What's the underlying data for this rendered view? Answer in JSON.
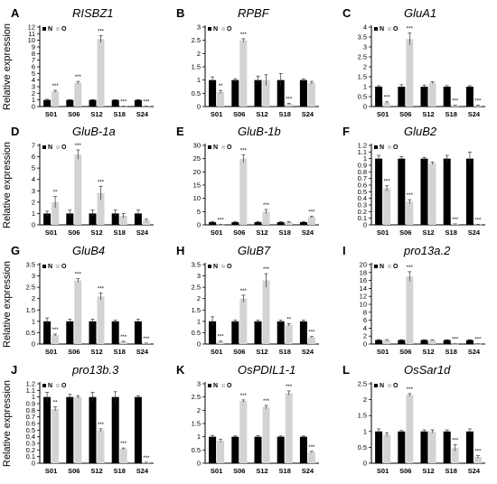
{
  "figure": {
    "ylabel": "Relative expression",
    "samples": [
      "S01",
      "S06",
      "S12",
      "S18",
      "S24"
    ],
    "legend": {
      "n": "N",
      "o": "O"
    },
    "colors": {
      "n": "#000000",
      "o": "#d3d3d3",
      "axis": "#000000"
    }
  },
  "chart_data": [
    {
      "type": "bar",
      "panel": "A",
      "title": "RISBZ1",
      "categories": [
        "S01",
        "S06",
        "S12",
        "S18",
        "S24"
      ],
      "ylim": [
        0,
        12
      ],
      "yticks": [
        "0",
        "1",
        "2",
        "3",
        "4",
        "5",
        "6",
        "7",
        "8",
        "9",
        "10",
        "11",
        "12"
      ],
      "series": [
        {
          "name": "N",
          "values": [
            1.0,
            1.0,
            1.0,
            1.0,
            1.0
          ],
          "errors": [
            0.1,
            0.06,
            0.06,
            0.05,
            0.05
          ],
          "sig": [
            "",
            "",
            "",
            "",
            ""
          ]
        },
        {
          "name": "O",
          "values": [
            2.3,
            3.6,
            10.2,
            0.05,
            0.05
          ],
          "errors": [
            0.15,
            0.2,
            0.5,
            0.02,
            0.02
          ],
          "sig": [
            "***",
            "***",
            "***",
            "***",
            "***"
          ]
        }
      ]
    },
    {
      "type": "bar",
      "panel": "B",
      "title": "RPBF",
      "categories": [
        "S01",
        "S06",
        "S12",
        "S18",
        "S24"
      ],
      "ylim": [
        0,
        3
      ],
      "yticks": [
        "0",
        "0.5",
        "1",
        "1.5",
        "2",
        "2.5",
        "3"
      ],
      "series": [
        {
          "name": "N",
          "values": [
            1.0,
            1.0,
            1.0,
            1.0,
            1.0
          ],
          "errors": [
            0.12,
            0.05,
            0.15,
            0.25,
            0.05
          ],
          "sig": [
            "",
            "",
            "",
            "",
            ""
          ]
        },
        {
          "name": "O",
          "values": [
            0.55,
            2.5,
            1.0,
            0.1,
            0.9
          ],
          "errors": [
            0.06,
            0.06,
            0.2,
            0.02,
            0.05
          ],
          "sig": [
            "**",
            "***",
            "",
            "***",
            ""
          ]
        }
      ]
    },
    {
      "type": "bar",
      "panel": "C",
      "title": "GluA1",
      "categories": [
        "S01",
        "S06",
        "S12",
        "S18",
        "S24"
      ],
      "ylim": [
        0,
        4
      ],
      "yticks": [
        "0",
        "0.5",
        "1",
        "1.5",
        "2",
        "2.5",
        "3",
        "3.5",
        "4"
      ],
      "series": [
        {
          "name": "N",
          "values": [
            1.0,
            1.0,
            1.0,
            1.0,
            1.0
          ],
          "errors": [
            0.05,
            0.1,
            0.08,
            0.05,
            0.05
          ],
          "sig": [
            "",
            "",
            "",
            "",
            ""
          ]
        },
        {
          "name": "O",
          "values": [
            0.2,
            3.4,
            1.2,
            0.05,
            0.05
          ],
          "errors": [
            0.04,
            0.3,
            0.05,
            0.02,
            0.02
          ],
          "sig": [
            "***",
            "***",
            "",
            "***",
            "***"
          ]
        }
      ]
    },
    {
      "type": "bar",
      "panel": "D",
      "title": "GluB-1a",
      "categories": [
        "S01",
        "S06",
        "S12",
        "S18",
        "S24"
      ],
      "ylim": [
        0,
        7
      ],
      "yticks": [
        "0",
        "1",
        "2",
        "3",
        "4",
        "5",
        "6",
        "7"
      ],
      "series": [
        {
          "name": "N",
          "values": [
            1.0,
            1.0,
            1.0,
            1.0,
            1.0
          ],
          "errors": [
            0.2,
            0.3,
            0.3,
            0.3,
            0.3
          ],
          "sig": [
            "",
            "",
            "",
            "",
            ""
          ]
        },
        {
          "name": "O",
          "values": [
            2.0,
            6.2,
            2.8,
            0.8,
            0.4
          ],
          "errors": [
            0.5,
            0.4,
            0.6,
            0.2,
            0.1
          ],
          "sig": [
            "**",
            "***",
            "***",
            "",
            ""
          ]
        }
      ]
    },
    {
      "type": "bar",
      "panel": "E",
      "title": "GluB-1b",
      "categories": [
        "S01",
        "S06",
        "S12",
        "S18",
        "S24"
      ],
      "ylim": [
        0,
        30
      ],
      "yticks": [
        "0",
        "5",
        "10",
        "15",
        "20",
        "25",
        "30"
      ],
      "series": [
        {
          "name": "N",
          "values": [
            1.0,
            1.0,
            1.0,
            1.0,
            1.0
          ],
          "errors": [
            0.2,
            0.2,
            0.2,
            0.2,
            0.2
          ],
          "sig": [
            "",
            "",
            "",
            "",
            ""
          ]
        },
        {
          "name": "O",
          "values": [
            0.1,
            25.0,
            5.0,
            1.0,
            3.0
          ],
          "errors": [
            0.05,
            1.5,
            0.8,
            0.2,
            0.3
          ],
          "sig": [
            "***",
            "***",
            "***",
            "",
            "***"
          ]
        }
      ]
    },
    {
      "type": "bar",
      "panel": "F",
      "title": "GluB2",
      "categories": [
        "S01",
        "S06",
        "S12",
        "S18",
        "S24"
      ],
      "ylim": [
        0,
        1.2
      ],
      "yticks": [
        "0",
        "0.1",
        "0.2",
        "0.3",
        "0.4",
        "0.5",
        "0.6",
        "0.7",
        "0.8",
        "0.9",
        "1",
        "1.1",
        "1.2"
      ],
      "series": [
        {
          "name": "N",
          "values": [
            1.0,
            1.0,
            1.0,
            1.0,
            1.0
          ],
          "errors": [
            0.05,
            0.03,
            0.02,
            0.05,
            0.1
          ],
          "sig": [
            "",
            "",
            "",
            "",
            ""
          ]
        },
        {
          "name": "O",
          "values": [
            0.55,
            0.35,
            0.93,
            0.01,
            0.005
          ],
          "errors": [
            0.04,
            0.03,
            0.02,
            0.005,
            0.003
          ],
          "sig": [
            "***",
            "***",
            "",
            "***",
            "***"
          ]
        }
      ]
    },
    {
      "type": "bar",
      "panel": "G",
      "title": "GluB4",
      "categories": [
        "S01",
        "S06",
        "S12",
        "S18",
        "S24"
      ],
      "ylim": [
        0,
        3.5
      ],
      "yticks": [
        "0",
        "0.5",
        "1",
        "1.5",
        "2",
        "2.5",
        "3",
        "3.5"
      ],
      "series": [
        {
          "name": "N",
          "values": [
            1.0,
            1.0,
            1.0,
            1.0,
            1.0
          ],
          "errors": [
            0.15,
            0.1,
            0.1,
            0.05,
            0.1
          ],
          "sig": [
            "",
            "",
            "",
            "",
            ""
          ]
        },
        {
          "name": "O",
          "values": [
            0.4,
            2.8,
            2.1,
            0.1,
            0.03
          ],
          "errors": [
            0.04,
            0.08,
            0.15,
            0.02,
            0.01
          ],
          "sig": [
            "***",
            "***",
            "***",
            "***",
            "***"
          ]
        }
      ]
    },
    {
      "type": "bar",
      "panel": "H",
      "title": "GluB7",
      "categories": [
        "S01",
        "S06",
        "S12",
        "S18",
        "S24"
      ],
      "ylim": [
        0,
        3.5
      ],
      "yticks": [
        "0",
        "0.5",
        "1",
        "1.5",
        "2",
        "2.5",
        "3",
        "3.5"
      ],
      "series": [
        {
          "name": "N",
          "values": [
            1.0,
            1.0,
            1.0,
            1.0,
            1.0
          ],
          "errors": [
            0.2,
            0.05,
            0.05,
            0.05,
            0.05
          ],
          "sig": [
            "",
            "",
            "",
            "",
            ""
          ]
        },
        {
          "name": "O",
          "values": [
            0.1,
            2.0,
            2.8,
            0.85,
            0.3
          ],
          "errors": [
            0.03,
            0.15,
            0.3,
            0.05,
            0.03
          ],
          "sig": [
            "***",
            "***",
            "***",
            "**",
            "***"
          ]
        }
      ]
    },
    {
      "type": "bar",
      "panel": "I",
      "title": "pro13a.2",
      "categories": [
        "S01",
        "S06",
        "S12",
        "S18",
        "S24"
      ],
      "ylim": [
        0,
        20
      ],
      "yticks": [
        "0",
        "2",
        "4",
        "6",
        "8",
        "10",
        "12",
        "14",
        "16",
        "18",
        "20"
      ],
      "series": [
        {
          "name": "N",
          "values": [
            1.0,
            1.0,
            1.0,
            1.0,
            1.0
          ],
          "errors": [
            0.1,
            0.1,
            0.1,
            0.1,
            0.1
          ],
          "sig": [
            "",
            "",
            "",
            "",
            ""
          ]
        },
        {
          "name": "O",
          "values": [
            1.0,
            17.0,
            1.0,
            0.05,
            0.05
          ],
          "errors": [
            0.1,
            1.2,
            0.1,
            0.02,
            0.02
          ],
          "sig": [
            "",
            "***",
            "",
            "***",
            "***"
          ]
        }
      ]
    },
    {
      "type": "bar",
      "panel": "J",
      "title": "pro13b.3",
      "categories": [
        "S01",
        "S06",
        "S12",
        "S18",
        "S24"
      ],
      "ylim": [
        0,
        1.2
      ],
      "yticks": [
        "0",
        "0.1",
        "0.2",
        "0.3",
        "0.4",
        "0.5",
        "0.6",
        "0.7",
        "0.8",
        "0.9",
        "1",
        "1.1",
        "1.2"
      ],
      "series": [
        {
          "name": "N",
          "values": [
            1.0,
            1.0,
            1.0,
            1.0,
            1.0
          ],
          "errors": [
            0.07,
            0.04,
            0.07,
            0.08,
            0.02
          ],
          "sig": [
            "",
            "",
            "",
            "",
            ""
          ]
        },
        {
          "name": "O",
          "values": [
            0.82,
            1.0,
            0.5,
            0.22,
            0.01
          ],
          "errors": [
            0.03,
            0.02,
            0.02,
            0.01,
            0.005
          ],
          "sig": [
            "**",
            "",
            "***",
            "***",
            "***"
          ]
        }
      ]
    },
    {
      "type": "bar",
      "panel": "K",
      "title": "OsPDIL1-1",
      "categories": [
        "S01",
        "S06",
        "S12",
        "S18",
        "S24"
      ],
      "ylim": [
        0,
        3
      ],
      "yticks": [
        "0",
        "0.5",
        "1",
        "1.5",
        "2",
        "2.5",
        "3"
      ],
      "series": [
        {
          "name": "N",
          "values": [
            1.0,
            1.0,
            1.0,
            1.0,
            1.0
          ],
          "errors": [
            0.05,
            0.03,
            0.04,
            0.03,
            0.03
          ],
          "sig": [
            "",
            "",
            "",
            "",
            ""
          ]
        },
        {
          "name": "O",
          "values": [
            0.85,
            2.35,
            2.12,
            2.65,
            0.42
          ],
          "errors": [
            0.05,
            0.04,
            0.06,
            0.08,
            0.03
          ],
          "sig": [
            "",
            "***",
            "***",
            "***",
            "***"
          ]
        }
      ]
    },
    {
      "type": "bar",
      "panel": "L",
      "title": "OsSar1d",
      "categories": [
        "S01",
        "S06",
        "S12",
        "S18",
        "S24"
      ],
      "ylim": [
        0,
        2.5
      ],
      "yticks": [
        "0",
        "0.5",
        "1",
        "1.5",
        "2",
        "2.5"
      ],
      "series": [
        {
          "name": "N",
          "values": [
            1.0,
            1.0,
            1.0,
            1.0,
            1.0
          ],
          "errors": [
            0.08,
            0.03,
            0.05,
            0.05,
            0.08
          ],
          "sig": [
            "",
            "",
            "",
            "",
            ""
          ]
        },
        {
          "name": "O",
          "values": [
            0.9,
            2.15,
            1.0,
            0.48,
            0.2
          ],
          "errors": [
            0.06,
            0.04,
            0.05,
            0.1,
            0.04
          ],
          "sig": [
            "",
            "***",
            "",
            "***",
            "***"
          ]
        }
      ]
    }
  ]
}
